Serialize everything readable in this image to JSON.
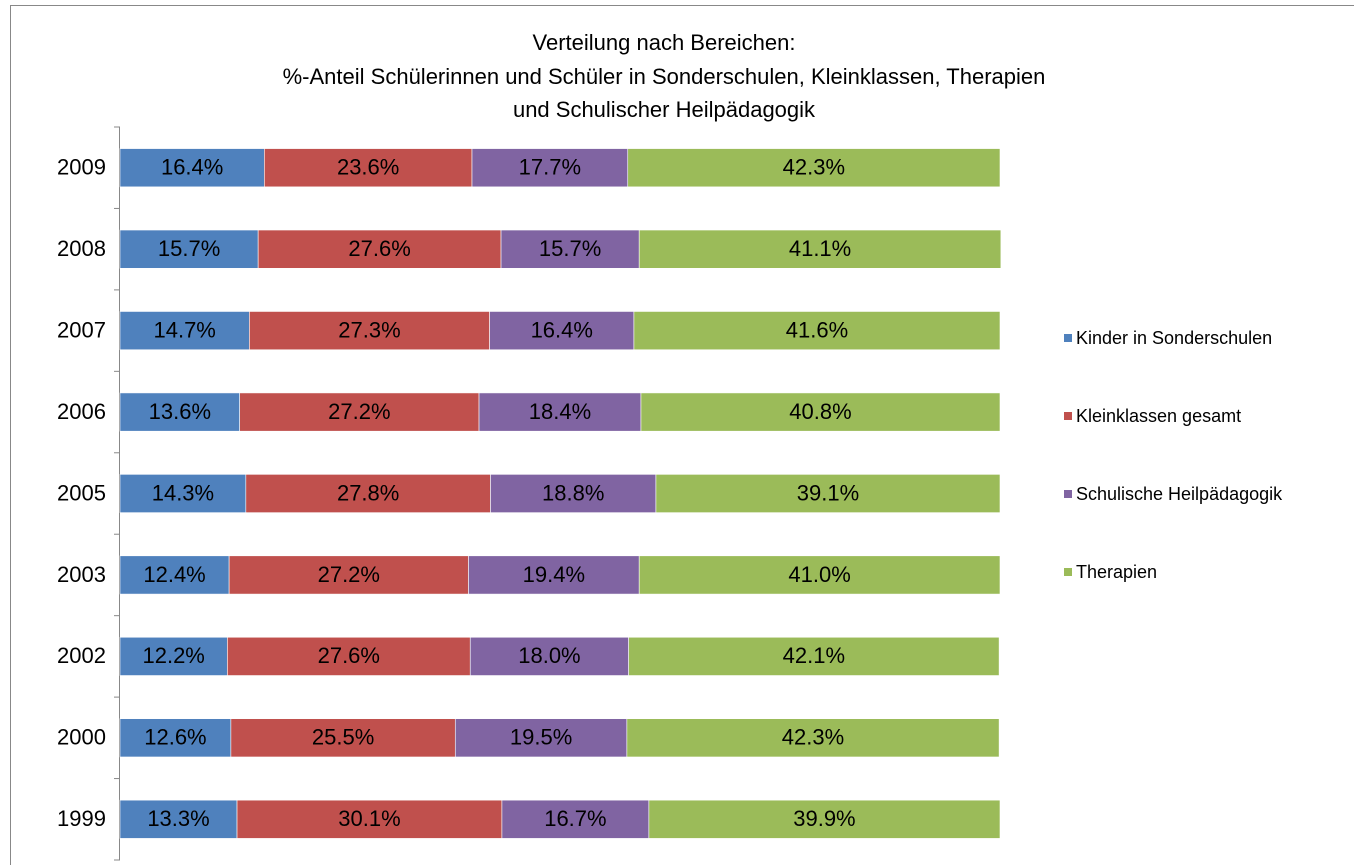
{
  "chart_data": {
    "type": "stacked_bar_horizontal",
    "title": [
      "Verteilung nach Bereichen:",
      "%-Anteil Schülerinnen und Schüler  in Sonderschulen, Kleinklassen, Therapien",
      "und Schulischer Heilpädagogik"
    ],
    "categories": [
      "2009",
      "2008",
      "2007",
      "2006",
      "2005",
      "2003",
      "2002",
      "2000",
      "1999"
    ],
    "xlim": [
      0,
      100
    ],
    "legend": "right",
    "series": [
      {
        "name": "Kinder in Sonderschulen",
        "color": "#4f81bd",
        "values": [
          16.4,
          15.7,
          14.7,
          13.6,
          14.3,
          12.4,
          12.2,
          12.6,
          13.3
        ],
        "value_labels": [
          "16.4%",
          "15.7%",
          "14.7%",
          "13.6%",
          "14.3%",
          "12.4%",
          "12.2%",
          "12.6%",
          "13.3%"
        ]
      },
      {
        "name": "Kleinklassen gesamt",
        "color": "#c0504d",
        "values": [
          23.6,
          27.6,
          27.3,
          27.2,
          27.8,
          27.2,
          27.6,
          25.5,
          30.1
        ],
        "value_labels": [
          "23.6%",
          "27.6%",
          "27.3%",
          "27.2%",
          "27.8%",
          "27.2%",
          "27.6%",
          "25.5%",
          "30.1%"
        ]
      },
      {
        "name": "Schulische Heilpädagogik",
        "color": "#8064a2",
        "values": [
          17.7,
          15.7,
          16.4,
          18.4,
          18.8,
          19.4,
          18.0,
          19.5,
          16.7
        ],
        "value_labels": [
          "17.7%",
          "15.7%",
          "16.4%",
          "18.4%",
          "18.8%",
          "19.4%",
          "18.0%",
          "19.5%",
          "16.7%"
        ]
      },
      {
        "name": "Therapien",
        "color": "#9bbb59",
        "values": [
          42.3,
          41.1,
          41.6,
          40.8,
          39.1,
          41.0,
          42.1,
          42.3,
          39.9
        ],
        "value_labels": [
          "42.3%",
          "41.1%",
          "41.6%",
          "40.8%",
          "39.1%",
          "41.0%",
          "42.1%",
          "42.3%",
          "39.9%"
        ]
      }
    ]
  }
}
